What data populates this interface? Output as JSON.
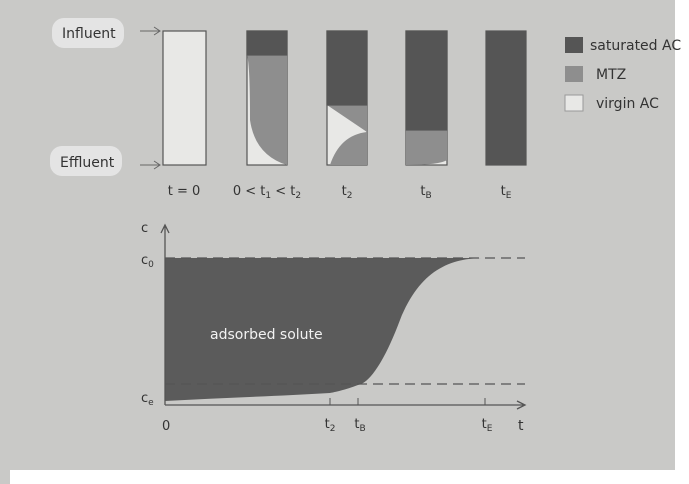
{
  "labels": {
    "influent": "Influent",
    "effluent": "Effluent"
  },
  "columns": [
    {
      "parts": [
        "t = 0"
      ]
    },
    {
      "parts": [
        "0 < t",
        "1",
        " < t",
        "2"
      ]
    },
    {
      "parts": [
        "t",
        "2"
      ]
    },
    {
      "parts": [
        "t",
        "B"
      ]
    },
    {
      "parts": [
        "t",
        "E"
      ]
    }
  ],
  "legend": [
    "saturated AC",
    "MTZ",
    "virgin AC"
  ],
  "graph": {
    "y_axis": "c",
    "c0": [
      "c",
      "0"
    ],
    "ce": [
      "c",
      "e"
    ],
    "origin": "0",
    "x_ticks": [
      [
        "t",
        "2"
      ],
      [
        "t",
        "B"
      ],
      [
        "t",
        "E"
      ]
    ],
    "x_axis": "t",
    "area_label": "adsorbed solute"
  }
}
